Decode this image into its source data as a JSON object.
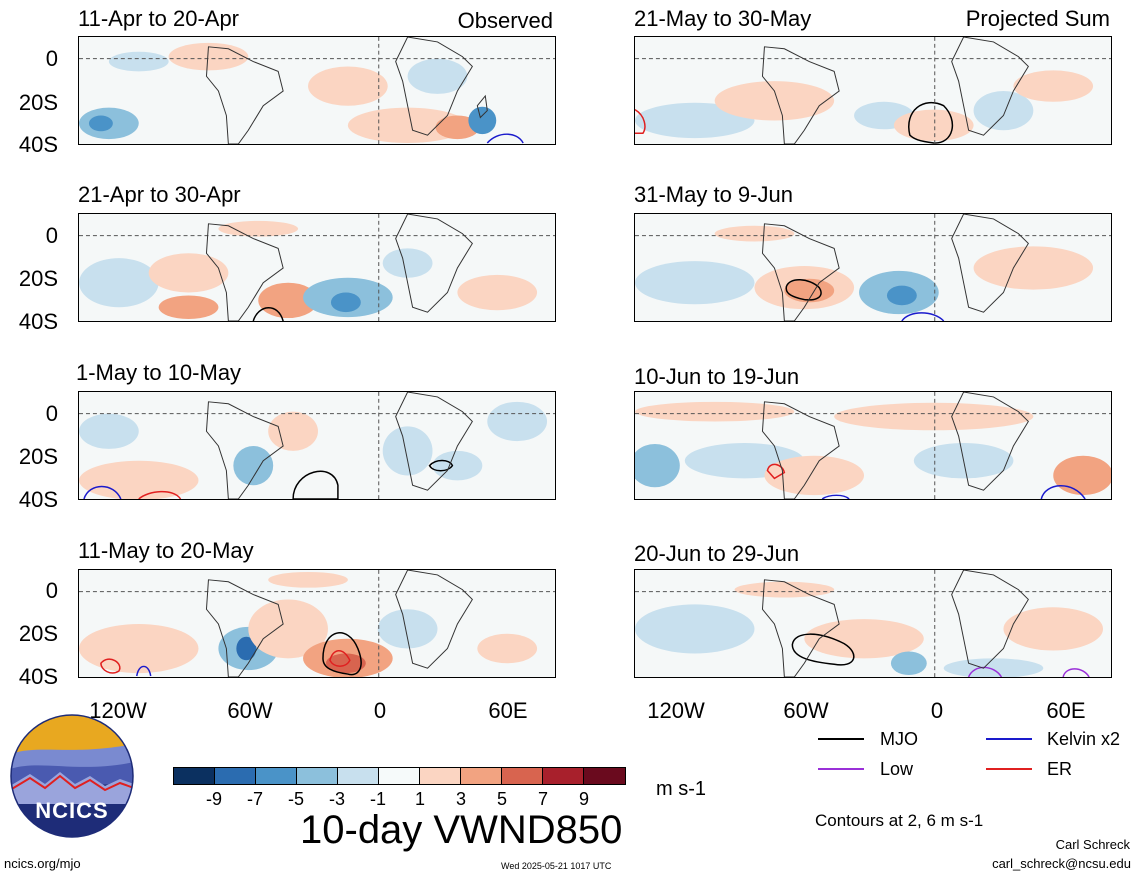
{
  "header": {
    "left_label": "Observed",
    "right_label": "Projected Sum"
  },
  "panels_left": [
    {
      "title": "11-Apr to 20-Apr"
    },
    {
      "title": "21-Apr to 30-Apr"
    },
    {
      "title": "1-May to 10-May"
    },
    {
      "title": "11-May to 20-May"
    }
  ],
  "panels_right": [
    {
      "title": "21-May to 30-May"
    },
    {
      "title": "31-May to 9-Jun"
    },
    {
      "title": "10-Jun to 19-Jun"
    },
    {
      "title": "20-Jun to 29-Jun"
    }
  ],
  "y_ticks": [
    "0",
    "20S",
    "40S"
  ],
  "x_ticks": [
    "120W",
    "60W",
    "0",
    "60E"
  ],
  "colorbar": {
    "labels": [
      "-9",
      "-7",
      "-5",
      "-3",
      "-1",
      "1",
      "3",
      "5",
      "7",
      "9"
    ],
    "colors": [
      "#0b3060",
      "#2b6cb0",
      "#4a93c8",
      "#8cc0dc",
      "#c8e0ee",
      "#f6fafa",
      "#fbd5c2",
      "#f2a381",
      "#d8644f",
      "#a8202c",
      "#6a0a1e"
    ],
    "units": "m s-1",
    "title": "10-day VWND850"
  },
  "legend": {
    "items": [
      {
        "label": "MJO",
        "color": "#000000"
      },
      {
        "label": "Kelvin x2",
        "color": "#1a1acc"
      },
      {
        "label": "Low",
        "color": "#9a30d8"
      },
      {
        "label": "ER",
        "color": "#e02020"
      }
    ],
    "contours_note": "Contours at 2, 6 m s-1"
  },
  "logo": {
    "text": "NCICS"
  },
  "footer": {
    "site": "ncics.org/mjo",
    "timestamp": "Wed 2025-05-21 1017 UTC",
    "author": "Carl Schreck",
    "email": "carl_schreck@ncsu.edu"
  }
}
